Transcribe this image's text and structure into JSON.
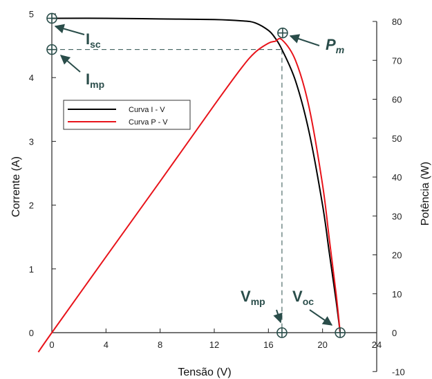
{
  "chart_data": {
    "type": "line",
    "xlabel": "Tensão (V)",
    "ylabel_left": "Corrente (A)",
    "ylabel_right": "Potência (W)",
    "xlim": [
      0,
      24
    ],
    "ylim_left": [
      0,
      5
    ],
    "ylim_right": [
      -10,
      80
    ],
    "x_ticks": [
      "0",
      "4",
      "8",
      "12",
      "16",
      "20",
      "24"
    ],
    "y_left_ticks": [
      "0",
      "1",
      "2",
      "3",
      "4",
      "5"
    ],
    "y_right_ticks": [
      "-10",
      "0",
      "10",
      "20",
      "30",
      "40",
      "50",
      "60",
      "70",
      "80"
    ],
    "legend_position": "upper-left",
    "grid": false,
    "series": [
      {
        "name": "Curva I - V",
        "axis": "left",
        "color": "#000000",
        "x": [
          0,
          4,
          8,
          12,
          14,
          15,
          16,
          16.5,
          17,
          18,
          19,
          20,
          20.5,
          21,
          21.3
        ],
        "y": [
          4.93,
          4.93,
          4.92,
          4.91,
          4.89,
          4.86,
          4.74,
          4.62,
          4.44,
          3.95,
          3.15,
          2.0,
          1.25,
          0.5,
          0.0
        ]
      },
      {
        "name": "Curva P - V",
        "axis": "right",
        "color": "#e8131a",
        "x": [
          -1,
          0,
          4,
          8,
          12,
          14,
          15,
          16,
          16.5,
          17,
          18,
          19,
          20,
          20.5,
          21,
          21.3
        ],
        "y": [
          -5,
          0,
          19.5,
          38.9,
          58.5,
          68.0,
          72.0,
          74.4,
          74.9,
          75.3,
          70.0,
          58.0,
          38.0,
          24.0,
          10.0,
          0.0
        ]
      }
    ],
    "guide_lines": {
      "vmp_x": 17,
      "imp_y": 4.44
    },
    "annotations": [
      {
        "main": "I",
        "sub": "sc",
        "color": "#2a4d4a"
      },
      {
        "main": "I",
        "sub": "mp",
        "color": "#2a4d4a"
      },
      {
        "main": "P",
        "sub": "m",
        "color": "#2a4d4a"
      },
      {
        "main": "V",
        "sub": "mp",
        "color": "#2a4d4a"
      },
      {
        "main": "V",
        "sub": "oc",
        "color": "#2a4d4a"
      }
    ]
  }
}
